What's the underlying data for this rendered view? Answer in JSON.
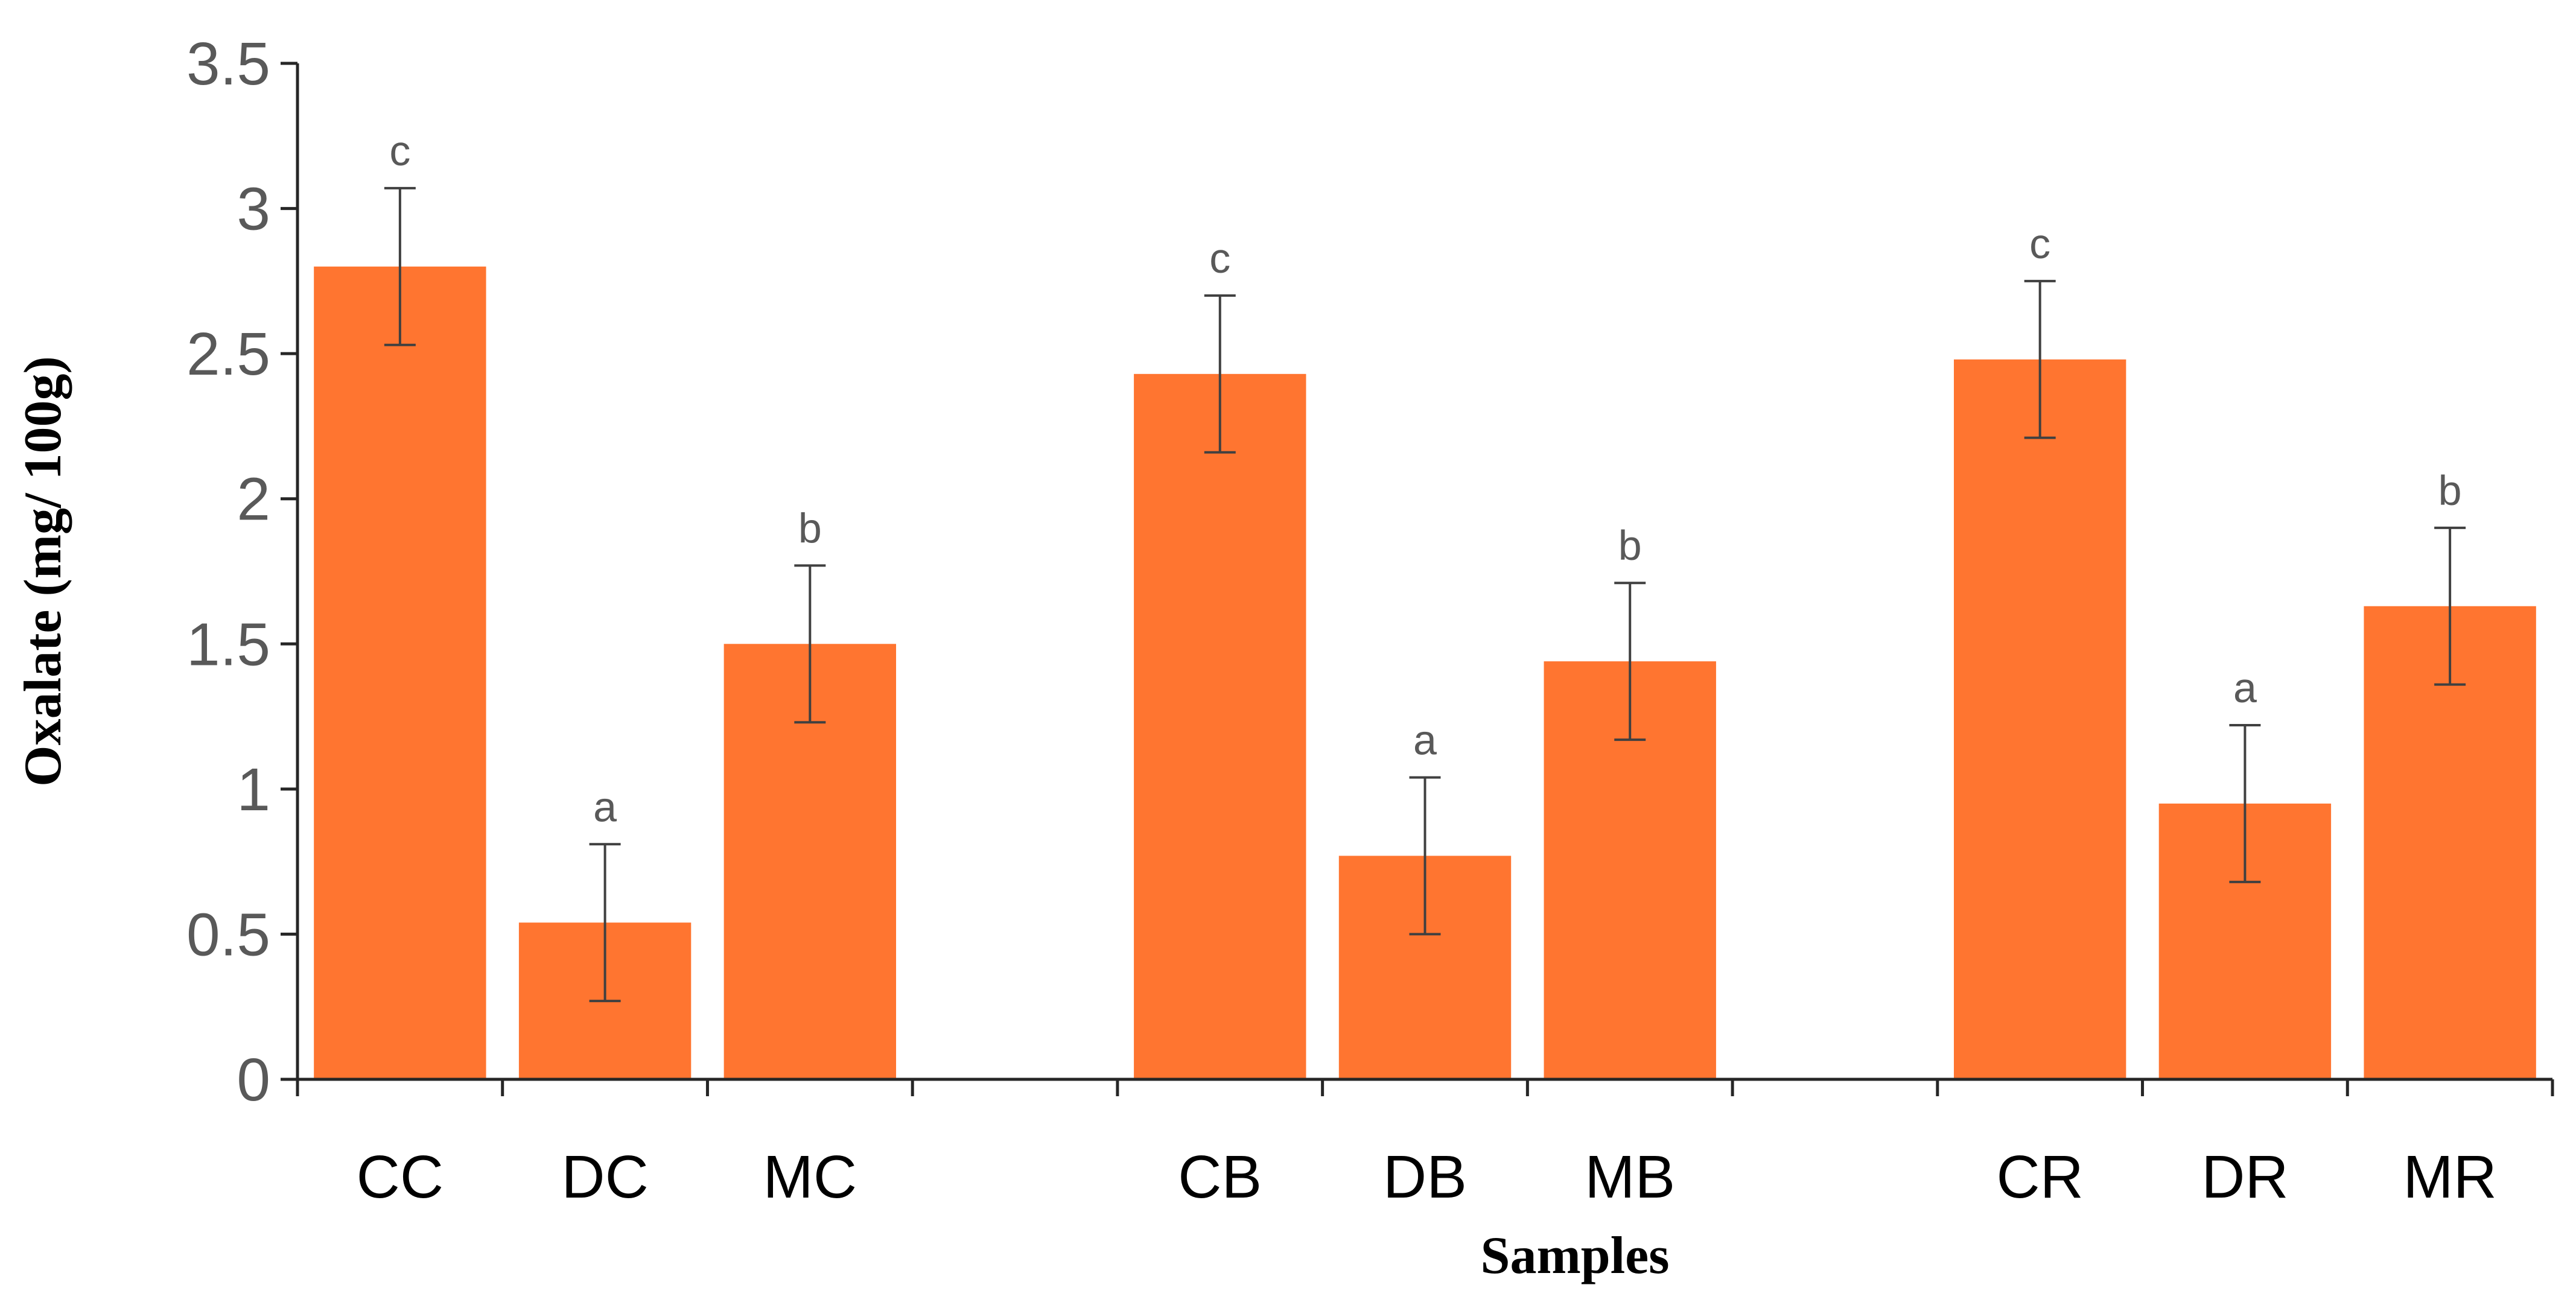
{
  "chart_data": {
    "type": "bar",
    "xlabel": "Samples",
    "ylabel": "Oxalate (mg/ 100g)",
    "ylim": [
      0,
      3.5
    ],
    "yticks": [
      "0",
      "0.5",
      "1",
      "1.5",
      "2",
      "2.5",
      "3",
      "3.5"
    ],
    "grid": false,
    "legend": "none",
    "slots": [
      "CC",
      "DC",
      "MC",
      "",
      "CB",
      "DB",
      "MB",
      "",
      "CR",
      "DR",
      "MR"
    ],
    "categories": [
      "CC",
      "DC",
      "MC",
      "CB",
      "DB",
      "MB",
      "CR",
      "DR",
      "MR"
    ],
    "values": [
      2.8,
      0.54,
      1.5,
      2.43,
      0.77,
      1.44,
      2.48,
      0.95,
      1.63
    ],
    "errors": [
      0.27,
      0.27,
      0.27,
      0.27,
      0.27,
      0.27,
      0.27,
      0.27,
      0.27
    ],
    "annotations": [
      "c",
      "a",
      "b",
      "c",
      "a",
      "b",
      "c",
      "a",
      "b"
    ],
    "colors": {
      "bar": "#FF7530",
      "axis": "#262626",
      "error_bar": "#404040"
    }
  }
}
